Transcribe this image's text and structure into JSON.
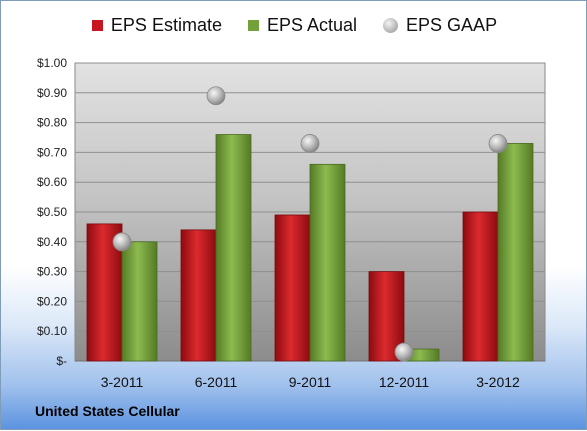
{
  "chart_data": {
    "type": "bar",
    "title": "",
    "xlabel": "",
    "ylabel": "",
    "categories": [
      "3-2011",
      "6-2011",
      "9-2011",
      "12-2011",
      "3-2012"
    ],
    "series": [
      {
        "name": "EPS Estimate",
        "kind": "bar",
        "color": "#c8151f",
        "values": [
          0.46,
          0.44,
          0.49,
          0.3,
          0.5
        ]
      },
      {
        "name": "EPS Actual",
        "kind": "bar",
        "color": "#74a03a",
        "values": [
          0.4,
          0.76,
          0.66,
          0.04,
          0.73
        ]
      },
      {
        "name": "EPS GAAP",
        "kind": "marker",
        "color": "#a9a9a9",
        "values": [
          0.4,
          0.89,
          0.73,
          0.03,
          0.73
        ]
      }
    ],
    "ylim": [
      0,
      1.0
    ],
    "yticks": [
      0,
      0.1,
      0.2,
      0.3,
      0.4,
      0.5,
      0.6,
      0.7,
      0.8,
      0.9,
      1.0
    ],
    "ytick_labels": [
      "$-",
      "$0.10",
      "$0.20",
      "$0.30",
      "$0.40",
      "$0.50",
      "$0.60",
      "$0.70",
      "$0.80",
      "$0.90",
      "$1.00"
    ],
    "grid": true,
    "legend_position": "top"
  },
  "legend": {
    "estimate": "EPS Estimate",
    "actual": "EPS Actual",
    "gaap": "EPS GAAP"
  },
  "footer": {
    "company": "United States Cellular"
  }
}
